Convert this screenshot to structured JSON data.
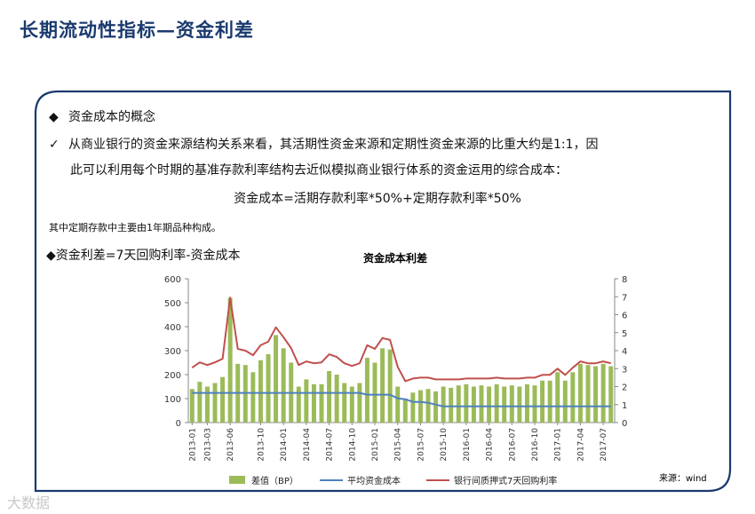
{
  "title": "长期流动性指标—资金利差",
  "bullets": {
    "b1_marker": "◆",
    "b1": "资金成本的概念",
    "b2_marker": "✓",
    "b2_line1": "从商业银行的资金来源结构关系来看，其活期性资金来源和定期性资金来源的比重大约是1:1，因",
    "b2_line2": "此可以利用每个时期的基准存款利率结构去近似模拟商业银行体系的资金运用的综合成本：",
    "formula": "资金成本=活期存款利率*50%+定期存款利率*50%",
    "note": "其中定期存款中主要由1年期品种构成。",
    "b3": "◆资金利差=7天回购利率-资金成本"
  },
  "source": "来源：wind",
  "watermark": "大数据",
  "colors": {
    "title": "#1a3a6e",
    "border": "#1a3a6e",
    "bar": "#9bbb59",
    "avg_cost_line": "#4f81bd",
    "repo_line": "#c0504d"
  },
  "chart_data": {
    "type": "bar",
    "title": "资金成本利差",
    "left_axis": {
      "min": 0,
      "max": 600,
      "ticks": [
        "0",
        "100",
        "200",
        "300",
        "400",
        "500",
        "600"
      ]
    },
    "right_axis": {
      "min": 0,
      "max": 8,
      "ticks": [
        "0",
        "1",
        "2",
        "3",
        "4",
        "5",
        "6",
        "7",
        "8"
      ]
    },
    "x_tick_labels": [
      "2013-01",
      "2013-03",
      "2013-06",
      "2013-10",
      "2014-01",
      "2014-04",
      "2014-07",
      "2014-10",
      "2015-01",
      "2015-04",
      "2015-07",
      "2015-10",
      "2016-01",
      "2016-04",
      "2016-07",
      "2016-10",
      "2017-01",
      "2017-04",
      "2017-07"
    ],
    "x_tick_index": [
      0,
      2,
      5,
      9,
      12,
      15,
      18,
      21,
      24,
      27,
      30,
      33,
      36,
      39,
      42,
      45,
      48,
      51,
      54
    ],
    "series": [
      {
        "name": "差值（BP）",
        "kind": "bar",
        "axis": "left",
        "values": [
          140,
          170,
          150,
          165,
          190,
          520,
          245,
          240,
          210,
          260,
          285,
          365,
          310,
          250,
          150,
          180,
          160,
          160,
          215,
          200,
          165,
          150,
          165,
          270,
          250,
          310,
          305,
          150,
          100,
          125,
          135,
          140,
          130,
          150,
          145,
          155,
          160,
          150,
          155,
          150,
          160,
          150,
          155,
          150,
          160,
          155,
          175,
          175,
          210,
          175,
          210,
          245,
          240,
          235,
          245,
          235
        ]
      },
      {
        "name": "平均资金成本",
        "kind": "line",
        "axis": "right",
        "values": [
          1.65,
          1.65,
          1.65,
          1.65,
          1.65,
          1.65,
          1.65,
          1.65,
          1.65,
          1.65,
          1.65,
          1.65,
          1.65,
          1.65,
          1.65,
          1.65,
          1.65,
          1.65,
          1.65,
          1.65,
          1.65,
          1.65,
          1.65,
          1.55,
          1.55,
          1.55,
          1.55,
          1.35,
          1.3,
          1.15,
          1.15,
          1.1,
          1.0,
          0.9,
          0.9,
          0.9,
          0.9,
          0.9,
          0.9,
          0.9,
          0.9,
          0.9,
          0.9,
          0.9,
          0.9,
          0.9,
          0.9,
          0.9,
          0.9,
          0.9,
          0.9,
          0.9,
          0.9,
          0.9,
          0.9,
          0.9
        ]
      },
      {
        "name": "银行间质押式7天回购利率",
        "kind": "line",
        "axis": "right",
        "values": [
          3.05,
          3.35,
          3.2,
          3.35,
          3.55,
          6.95,
          4.1,
          4.0,
          3.75,
          4.3,
          4.5,
          5.3,
          4.75,
          4.15,
          3.2,
          3.4,
          3.3,
          3.35,
          3.8,
          3.65,
          3.3,
          3.15,
          3.3,
          4.3,
          4.1,
          4.7,
          4.6,
          3.1,
          2.3,
          2.45,
          2.5,
          2.5,
          2.4,
          2.4,
          2.4,
          2.4,
          2.45,
          2.45,
          2.45,
          2.45,
          2.5,
          2.45,
          2.45,
          2.45,
          2.5,
          2.5,
          2.65,
          2.65,
          3.0,
          2.65,
          3.05,
          3.4,
          3.3,
          3.3,
          3.4,
          3.3
        ]
      }
    ]
  }
}
